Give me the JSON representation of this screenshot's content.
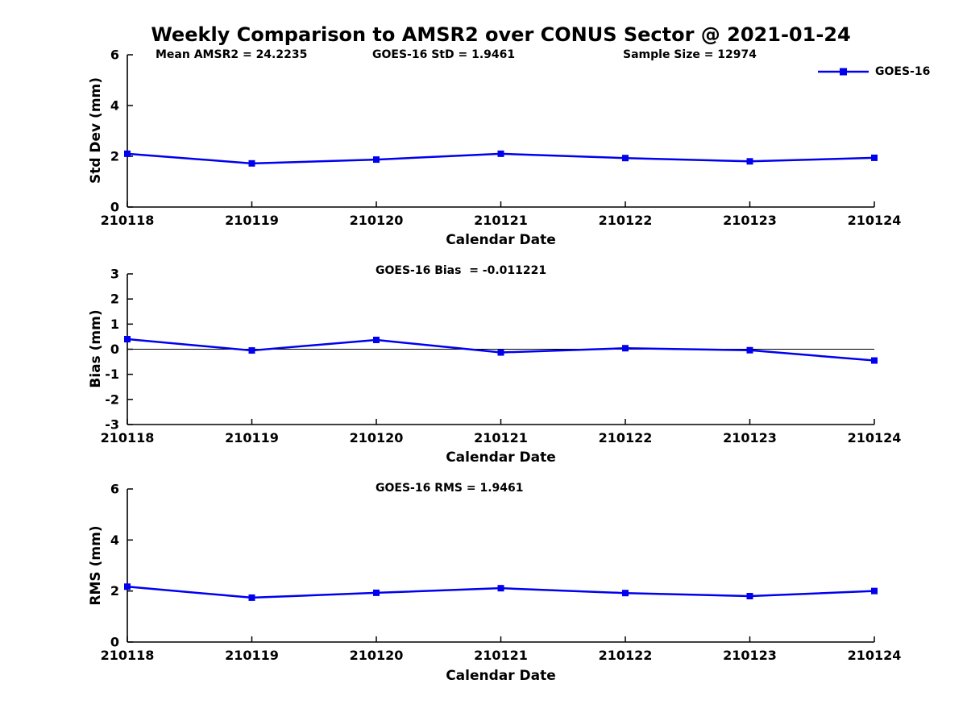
{
  "figure": {
    "title": "Weekly Comparison to AMSR2 over CONUS Sector @ 2021-01-24",
    "annotations": {
      "mean_amsr2": "Mean AMSR2 = 24.2235",
      "goes16_std": "GOES-16 StD = 1.9461",
      "sample_size": "Sample Size = 12974"
    },
    "legend": {
      "label": "GOES-16",
      "position": "top-right",
      "marker": "square"
    }
  },
  "colors": {
    "series": "#0000EE",
    "axis": "#000000",
    "zero_line": "#000000"
  },
  "chart_data": [
    {
      "type": "line",
      "title": "",
      "xlabel": "Calendar Date",
      "ylabel": "Std Dev (mm)",
      "categories": [
        "210118",
        "210119",
        "210120",
        "210121",
        "210122",
        "210123",
        "210124"
      ],
      "series": [
        {
          "name": "GOES-16",
          "marker": "square",
          "values": [
            2.1,
            1.72,
            1.87,
            2.1,
            1.93,
            1.8,
            1.94
          ]
        }
      ],
      "ylim": [
        0,
        6
      ],
      "yticks": [
        0,
        2,
        4,
        6
      ],
      "zero_line": false,
      "grid": false,
      "show_legend": true
    },
    {
      "type": "line",
      "title": "GOES-16 Bias  = -0.011221",
      "xlabel": "Calendar Date",
      "ylabel": "Bias (mm)",
      "categories": [
        "210118",
        "210119",
        "210120",
        "210121",
        "210122",
        "210123",
        "210124"
      ],
      "series": [
        {
          "name": "GOES-16",
          "marker": "square",
          "values": [
            0.4,
            -0.05,
            0.37,
            -0.13,
            0.04,
            -0.04,
            -0.45
          ]
        }
      ],
      "ylim": [
        -3,
        3
      ],
      "yticks": [
        -3,
        -2,
        -1,
        0,
        1,
        2,
        3
      ],
      "zero_line": true,
      "grid": false,
      "show_legend": false
    },
    {
      "type": "line",
      "title": "GOES-16 RMS = 1.9461",
      "xlabel": "Calendar Date",
      "ylabel": "RMS (mm)",
      "categories": [
        "210118",
        "210119",
        "210120",
        "210121",
        "210122",
        "210123",
        "210124"
      ],
      "series": [
        {
          "name": "GOES-16",
          "marker": "square",
          "values": [
            2.17,
            1.74,
            1.93,
            2.11,
            1.92,
            1.8,
            2.0
          ]
        }
      ],
      "ylim": [
        0,
        6
      ],
      "yticks": [
        0,
        2,
        4,
        6
      ],
      "zero_line": false,
      "grid": false,
      "show_legend": false
    }
  ]
}
